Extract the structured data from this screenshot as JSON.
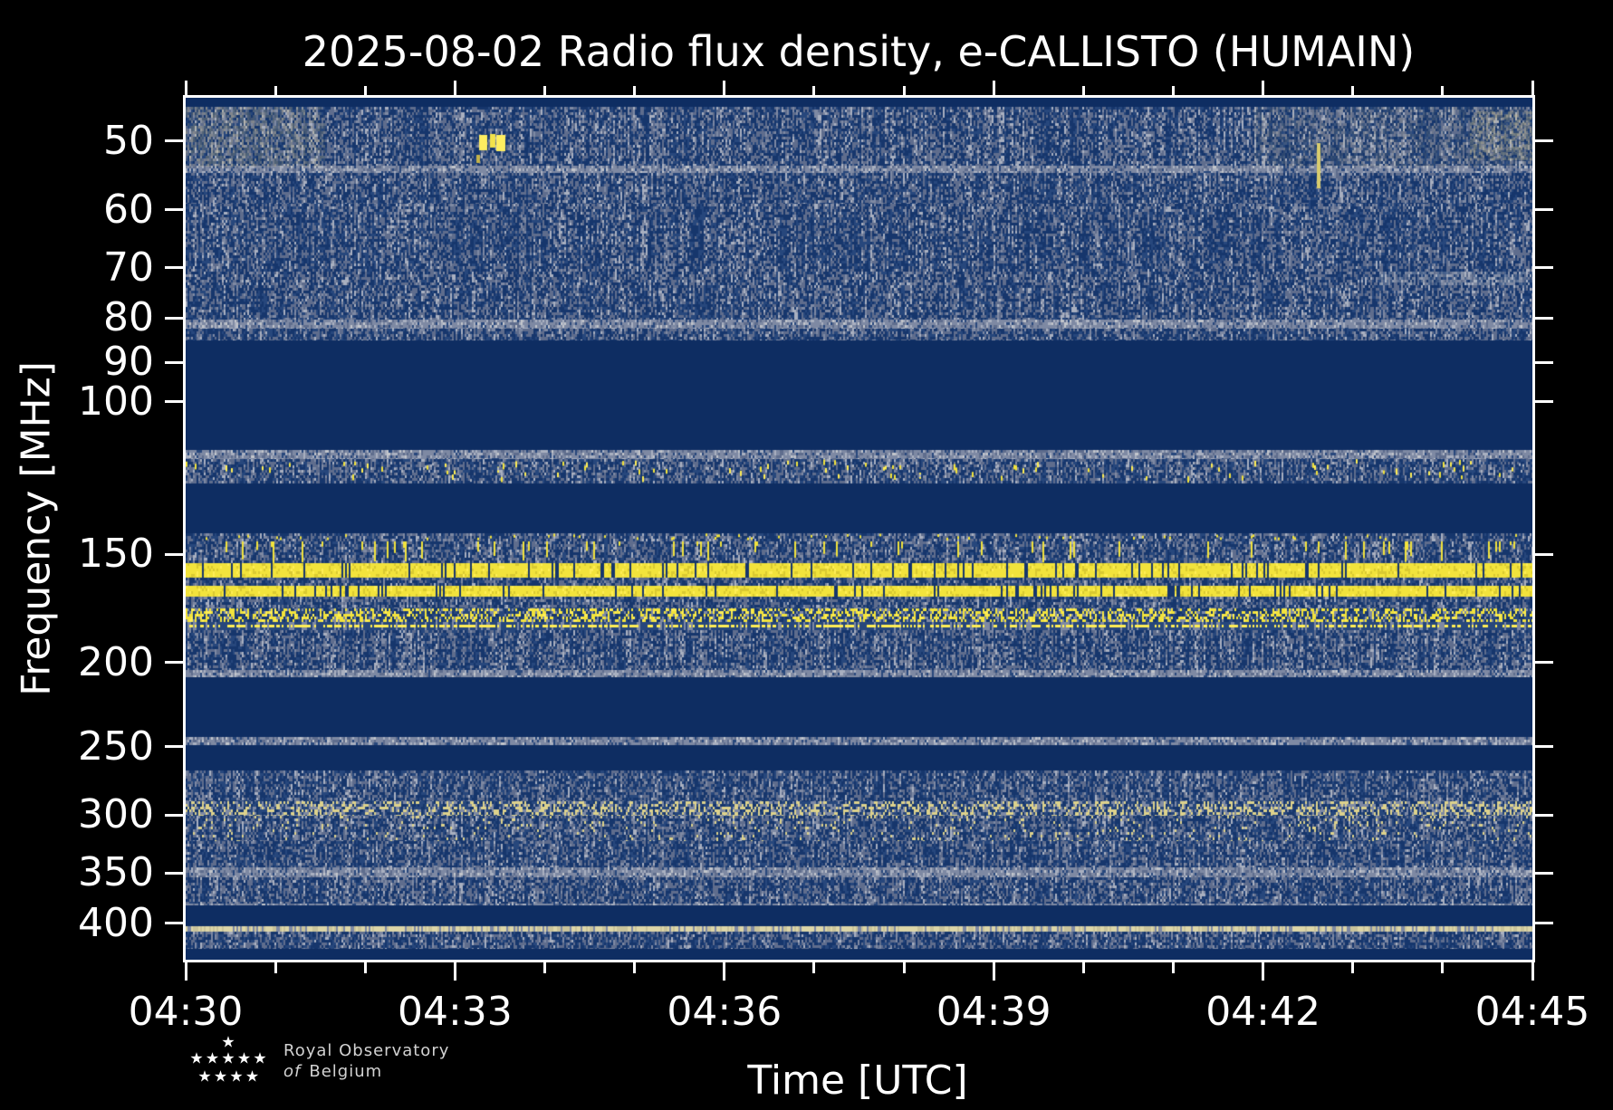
{
  "figure": {
    "title": "2025-08-02 Radio flux density, e-CALLISTO (HUMAIN)",
    "xlabel": "Time [UTC]",
    "ylabel": "Frequency [MHz]",
    "background": "#000000",
    "text_color": "#ffffff"
  },
  "logo": {
    "line1": "Royal Observatory",
    "line2_italic": "of",
    "line2_rest": "Belgium",
    "star_icon": "star",
    "star_count": 10
  },
  "chart_data": {
    "type": "heatmap",
    "subtype": "radio-spectrogram",
    "title": "2025-08-02 Radio flux density, e-CALLISTO (HUMAIN)",
    "xlabel": "Time [UTC]",
    "ylabel": "Frequency [MHz]",
    "x_start": "04:30",
    "x_end": "04:45",
    "x_total_minutes": 15,
    "x_major_ticks": [
      {
        "label": "04:30",
        "minute": 0
      },
      {
        "label": "04:33",
        "minute": 3
      },
      {
        "label": "04:36",
        "minute": 6
      },
      {
        "label": "04:39",
        "minute": 9
      },
      {
        "label": "04:42",
        "minute": 12
      },
      {
        "label": "04:45",
        "minute": 15
      }
    ],
    "x_minor_minutes": [
      1,
      2,
      4,
      5,
      7,
      8,
      10,
      11,
      13,
      14
    ],
    "y_scale": "log",
    "y_min_mhz": 44.55,
    "y_max_mhz": 440.5,
    "y_ticks": [
      {
        "label": "50",
        "mhz": 50
      },
      {
        "label": "60",
        "mhz": 60
      },
      {
        "label": "70",
        "mhz": 70
      },
      {
        "label": "80",
        "mhz": 80
      },
      {
        "label": "90",
        "mhz": 90
      },
      {
        "label": "100",
        "mhz": 100
      },
      {
        "label": "150",
        "mhz": 150
      },
      {
        "label": "200",
        "mhz": 200
      },
      {
        "label": "250",
        "mhz": 250
      },
      {
        "label": "300",
        "mhz": 300
      },
      {
        "label": "350",
        "mhz": 350
      },
      {
        "label": "400",
        "mhz": 400
      }
    ],
    "grid": false,
    "legend": false,
    "palette": {
      "navy": "#0e2d62",
      "blue_dark": "#16366c",
      "blue_mid": "#27477c",
      "gray_dim": "#66739100",
      "gray_low": "#5f6d8d",
      "gray_mid": "#7e89a3",
      "gray_light": "#a9b0c0",
      "gray_bright": "#c3c6cb",
      "yellow": "#f2e33c",
      "yellow_bright": "#ffee55",
      "yellow_dim": "#d9c931",
      "pale_yellow": "#ddd28c",
      "cream": "#ddd6a8",
      "cream_dim": "#c9c39b"
    },
    "bands": [
      {
        "f0": 44.55,
        "f1": 45.6,
        "kind": "flat"
      },
      {
        "f0": 45.6,
        "f1": 53.4,
        "kind": "speck",
        "level": 0.55
      },
      {
        "f0": 53.4,
        "f1": 54.4,
        "kind": "gline",
        "level": 0.75
      },
      {
        "f0": 54.4,
        "f1": 59.1,
        "kind": "speck",
        "level": 0.45
      },
      {
        "f0": 59.1,
        "f1": 60.3,
        "kind": "speck",
        "level": 0.62
      },
      {
        "f0": 60.3,
        "f1": 70.7,
        "kind": "speck",
        "level": 0.42
      },
      {
        "f0": 70.7,
        "f1": 73.3,
        "kind": "speck",
        "level": 0.65
      },
      {
        "f0": 73.3,
        "f1": 80.3,
        "kind": "speck",
        "level": 0.45
      },
      {
        "f0": 80.3,
        "f1": 82.2,
        "kind": "gline",
        "level": 0.8
      },
      {
        "f0": 82.2,
        "f1": 84.9,
        "kind": "speck",
        "level": 0.5
      },
      {
        "f0": 84.9,
        "f1": 113.5,
        "kind": "flat"
      },
      {
        "f0": 113.5,
        "f1": 116.3,
        "kind": "gline",
        "level": 0.55
      },
      {
        "f0": 116.3,
        "f1": 124.1,
        "kind": "ydots",
        "level": 0.5
      },
      {
        "f0": 124.1,
        "f1": 141.9,
        "kind": "flat"
      },
      {
        "f0": 141.9,
        "f1": 144.9,
        "kind": "gdash",
        "level": 0.65
      },
      {
        "f0": 144.9,
        "f1": 153.6,
        "kind": "yspeck",
        "level": 0.45
      },
      {
        "f0": 153.6,
        "f1": 159.5,
        "kind": "ybright"
      },
      {
        "f0": 159.5,
        "f1": 163.0,
        "kind": "speck",
        "level": 0.4
      },
      {
        "f0": 163.0,
        "f1": 168.0,
        "kind": "ybright"
      },
      {
        "f0": 168.0,
        "f1": 173.2,
        "kind": "speck",
        "level": 0.5
      },
      {
        "f0": 173.2,
        "f1": 179.7,
        "kind": "ydash",
        "level": 0.6
      },
      {
        "f0": 179.7,
        "f1": 183.5,
        "kind": "yfine"
      },
      {
        "f0": 183.5,
        "f1": 203.7,
        "kind": "speck",
        "level": 0.55
      },
      {
        "f0": 203.7,
        "f1": 208.1,
        "kind": "gline",
        "level": 0.8
      },
      {
        "f0": 208.1,
        "f1": 243.6,
        "kind": "flat"
      },
      {
        "f0": 243.6,
        "f1": 249.3,
        "kind": "gline",
        "level": 0.5
      },
      {
        "f0": 249.3,
        "f1": 266.4,
        "kind": "flat"
      },
      {
        "f0": 266.4,
        "f1": 288.9,
        "kind": "speck",
        "level": 0.5
      },
      {
        "f0": 288.9,
        "f1": 300.6,
        "kind": "pdash",
        "level": 0.55
      },
      {
        "f0": 300.6,
        "f1": 321.5,
        "kind": "speckp",
        "level": 0.45
      },
      {
        "f0": 321.5,
        "f1": 344.4,
        "kind": "speck",
        "level": 0.4
      },
      {
        "f0": 344.4,
        "f1": 354.1,
        "kind": "gline",
        "level": 0.55
      },
      {
        "f0": 354.1,
        "f1": 379.0,
        "kind": "speck",
        "level": 0.55
      },
      {
        "f0": 379.0,
        "f1": 381.7,
        "kind": "gline",
        "level": 0.7
      },
      {
        "f0": 381.7,
        "f1": 402.7,
        "kind": "flat"
      },
      {
        "f0": 402.7,
        "f1": 408.4,
        "kind": "cream"
      },
      {
        "f0": 408.4,
        "f1": 428.0,
        "kind": "speck",
        "level": 0.6
      },
      {
        "f0": 428.0,
        "f1": 434.8,
        "kind": "flat"
      }
    ],
    "overlays": [
      {
        "t0": 0,
        "t1": 1.55,
        "f0": 45.6,
        "f1": 53.4,
        "color": "#c9bc8b",
        "alpha": 0.38
      },
      {
        "t0": 11.9,
        "t1": 15,
        "f0": 45.6,
        "f1": 53.4,
        "color": "#b9b090",
        "alpha": 0.22
      },
      {
        "t0": 14.3,
        "t1": 15,
        "f0": 46.2,
        "f1": 52.6,
        "color": "#d3c48d",
        "alpha": 0.42
      },
      {
        "t0": 13.3,
        "t1": 15,
        "f0": 70.7,
        "f1": 73.3,
        "color": "#aeb6c2",
        "alpha": 0.5
      }
    ],
    "events": [
      {
        "t0": 3.27,
        "t1": 3.36,
        "f0": 49.2,
        "f1": 51.3,
        "color": "#ffee60"
      },
      {
        "t0": 3.385,
        "t1": 3.45,
        "f0": 49.1,
        "f1": 50.9,
        "color": "#f3e24a"
      },
      {
        "t0": 3.465,
        "t1": 3.565,
        "f0": 49.2,
        "f1": 51.4,
        "color": "#ffee60"
      },
      {
        "t0": 3.24,
        "t1": 3.285,
        "f0": 51.8,
        "f1": 52.9,
        "color": "#c4b34a"
      },
      {
        "t0": 12.6,
        "t1": 12.64,
        "f0": 50.3,
        "f1": 56.8,
        "color": "#d8cc6e"
      }
    ]
  }
}
